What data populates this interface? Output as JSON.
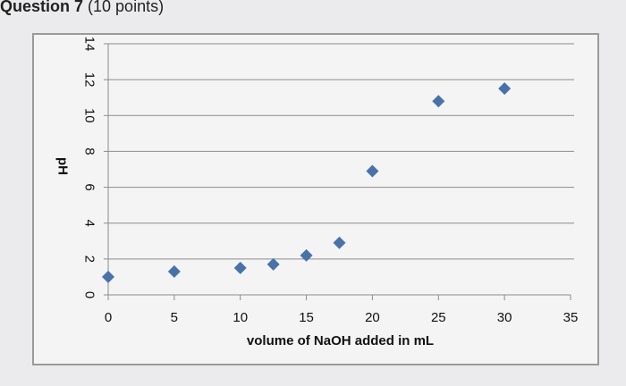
{
  "question": {
    "label": "Question 7",
    "points": "(10 points)"
  },
  "colors": {
    "marker": "#4a72aa",
    "gridline": "#8c8c8c",
    "frame": "#9a9a9a"
  },
  "chart_data": {
    "type": "scatter",
    "title": "",
    "xlabel": "volume of NaOH added in mL",
    "ylabel": "pH",
    "xlim": [
      0,
      35
    ],
    "ylim": [
      0,
      14
    ],
    "xticks": [
      0,
      5,
      10,
      15,
      20,
      25,
      30,
      35
    ],
    "yticks": [
      0,
      2,
      4,
      6,
      8,
      10,
      12,
      14
    ],
    "grid": "horizontal",
    "legend": "none",
    "marker": "diamond",
    "points": [
      {
        "x": 0,
        "y": 1.0
      },
      {
        "x": 5,
        "y": 1.3
      },
      {
        "x": 10,
        "y": 1.5
      },
      {
        "x": 12.5,
        "y": 1.7
      },
      {
        "x": 15,
        "y": 2.2
      },
      {
        "x": 17.5,
        "y": 2.9
      },
      {
        "x": 20,
        "y": 6.9
      },
      {
        "x": 25,
        "y": 10.8
      },
      {
        "x": 30,
        "y": 11.5
      }
    ]
  }
}
